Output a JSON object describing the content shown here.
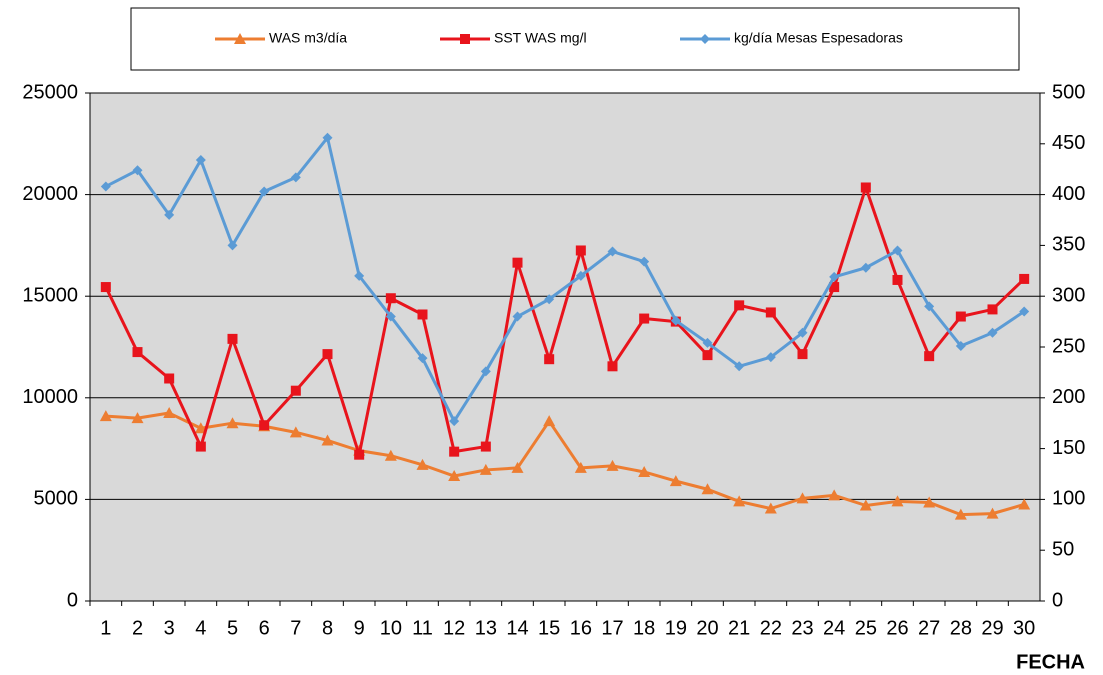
{
  "chart_data": {
    "type": "line",
    "x_label": "FECHA",
    "categories": [
      "1",
      "2",
      "3",
      "4",
      "5",
      "6",
      "7",
      "8",
      "9",
      "10",
      "11",
      "12",
      "13",
      "14",
      "15",
      "16",
      "17",
      "18",
      "19",
      "20",
      "21",
      "22",
      "23",
      "24",
      "25",
      "26",
      "27",
      "28",
      "29",
      "30"
    ],
    "series": [
      {
        "name": "WAS m3/día",
        "color": "#ed7d31",
        "marker": "triangle",
        "values": [
          9100,
          9000,
          9250,
          8500,
          8750,
          8600,
          8300,
          7900,
          7400,
          7150,
          6700,
          6150,
          6450,
          6550,
          8850,
          6550,
          6650,
          6350,
          5900,
          5500,
          4900,
          4550,
          5050,
          5200,
          4700,
          4900,
          4850,
          4250,
          4300,
          4750
        ]
      },
      {
        "name": "SST WAS mg/l",
        "color": "#e8141c",
        "marker": "square",
        "axis": "y2",
        "values": [
          309,
          245,
          219,
          152,
          258,
          173,
          207,
          243,
          144,
          298,
          282,
          147,
          152,
          333,
          238,
          345,
          231,
          278,
          275,
          242,
          291,
          284,
          243,
          309,
          407,
          316,
          241,
          280,
          287,
          317
        ]
      },
      {
        "name": "kg/día Mesas Espesadoras",
        "color": "#5b9bd5",
        "marker": "diamond",
        "values": [
          20400,
          21200,
          19000,
          21700,
          17500,
          20150,
          20850,
          22800,
          16000,
          14000,
          11950,
          8850,
          11300,
          14000,
          14850,
          16000,
          17200,
          16700,
          13800,
          12700,
          11550,
          12000,
          13200,
          15950,
          16400,
          17250,
          14500,
          12550,
          13200,
          14250
        ]
      }
    ],
    "ylim": [
      0,
      25000
    ],
    "yticks": [
      0,
      5000,
      10000,
      15000,
      20000,
      25000
    ],
    "y2lim": [
      0,
      500
    ],
    "y2ticks": [
      0,
      50,
      100,
      150,
      200,
      250,
      300,
      350,
      400,
      450,
      500
    ],
    "grid": true,
    "legend": "top",
    "plot_background": "#d9d9d9"
  }
}
